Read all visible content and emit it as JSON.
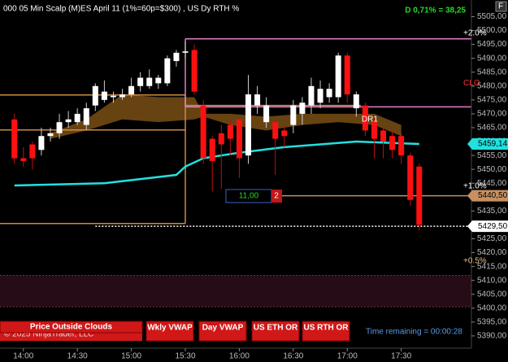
{
  "header": {
    "title": "000 05 Min Scalp (M)ES  April 11 (1%=60p=$300) , US Dy RTH %",
    "change": "D 0,71% = 38,25",
    "corner": "F"
  },
  "chart_data": {
    "type": "candlestick",
    "x": [
      0,
      1,
      2,
      3,
      4,
      5,
      6,
      7,
      8,
      9,
      10,
      11,
      12,
      13,
      14,
      15,
      16,
      17,
      18,
      19,
      20,
      21,
      22,
      23,
      24,
      25,
      26,
      27,
      28,
      29,
      30,
      31,
      32,
      33,
      34,
      35,
      36,
      37,
      38,
      39,
      40,
      41,
      42,
      43,
      44,
      45
    ],
    "open": [
      5468,
      5454,
      5459,
      5457,
      5462,
      5463,
      5467,
      5467,
      5466,
      5473,
      5475,
      5476,
      5476,
      5477,
      5480,
      5480,
      5481,
      5481,
      5489,
      5492,
      5493,
      5473,
      5461,
      5463,
      5466,
      5468,
      5455,
      5473,
      5467,
      5467,
      5464,
      5466,
      5470,
      5473,
      5474,
      5476,
      5476,
      5491,
      5472,
      5473,
      5467,
      5464,
      5462,
      5462,
      5455,
      5451
    ],
    "high": [
      5470,
      5458,
      5460,
      5465,
      5465,
      5470,
      5471,
      5472,
      5474,
      5481,
      5482,
      5478,
      5479,
      5483,
      5485,
      5486,
      5484,
      5491,
      5493,
      5496,
      5495,
      5475,
      5462,
      5466,
      5468,
      5469,
      5484,
      5480,
      5476,
      5468,
      5466,
      5475,
      5476,
      5483,
      5482,
      5481,
      5492,
      5492,
      5478,
      5474,
      5469,
      5465,
      5464,
      5463,
      5456,
      5452
    ],
    "low": [
      5452,
      5451,
      5450,
      5455,
      5460,
      5461,
      5465,
      5466,
      5464,
      5471,
      5474,
      5474,
      5475,
      5476,
      5478,
      5479,
      5479,
      5480,
      5487,
      5490,
      5477,
      5452,
      5442,
      5443,
      5455,
      5447,
      5452,
      5470,
      5465,
      5448,
      5458,
      5463,
      5466,
      5470,
      5472,
      5474,
      5474,
      5474,
      5469,
      5462,
      5454,
      5454,
      5454,
      5452,
      5437,
      5428
    ],
    "close": [
      5454,
      5453,
      5454,
      5462,
      5463,
      5467,
      5468,
      5470,
      5472,
      5480,
      5478,
      5476.5,
      5477,
      5480,
      5483,
      5483,
      5483,
      5490,
      5492,
      5492.5,
      5478,
      5454,
      5453,
      5459,
      5461,
      5454,
      5477,
      5477,
      5473,
      5461,
      5462,
      5473,
      5474,
      5480,
      5479,
      5479,
      5491,
      5477,
      5477,
      5464,
      5461,
      5460,
      5457,
      5455,
      5439,
      5430
    ],
    "up_color": "#ffffff",
    "down_color": "#ff1010",
    "xlim": [
      -1.6,
      50.8
    ],
    "xticks": [
      {
        "value": 1,
        "label": "14:00"
      },
      {
        "value": 7,
        "label": "14:30"
      },
      {
        "value": 13,
        "label": "15:00"
      },
      {
        "value": 19,
        "label": "15:30"
      },
      {
        "value": 25,
        "label": "16:00"
      },
      {
        "value": 31,
        "label": "16:30"
      },
      {
        "value": 37,
        "label": "17:00"
      },
      {
        "value": 43,
        "label": "17:30"
      }
    ],
    "ylim": [
      5385,
      5511
    ],
    "yticks": [
      {
        "value": 5390,
        "label": "5390,00"
      },
      {
        "value": 5395,
        "label": "5395,00"
      },
      {
        "value": 5400,
        "label": "5400,00"
      },
      {
        "value": 5405,
        "label": "5405,00"
      },
      {
        "value": 5410,
        "label": "5410,00"
      },
      {
        "value": 5415,
        "label": "5415,00"
      },
      {
        "value": 5420,
        "label": "5420,00"
      },
      {
        "value": 5425,
        "label": "5425,00"
      },
      {
        "value": 5430,
        "label": "5430,00"
      },
      {
        "value": 5435,
        "label": "5435,00"
      },
      {
        "value": 5440,
        "label": "5440,00"
      },
      {
        "value": 5445,
        "label": "5445,00"
      },
      {
        "value": 5450,
        "label": "5450,00"
      },
      {
        "value": 5455,
        "label": "5455,00"
      },
      {
        "value": 5460,
        "label": "5460,00"
      },
      {
        "value": 5465,
        "label": "5465,00"
      },
      {
        "value": 5470,
        "label": "5470,00"
      },
      {
        "value": 5475,
        "label": "5475,00"
      },
      {
        "value": 5480,
        "label": "5480,00"
      },
      {
        "value": 5485,
        "label": "5485,00"
      },
      {
        "value": 5490,
        "label": "5490,00"
      },
      {
        "value": 5495,
        "label": "5495,00"
      },
      {
        "value": 5500,
        "label": "5500,00"
      },
      {
        "value": 5505,
        "label": "5505,00"
      }
    ],
    "cloud": {
      "color": "#8a5a18",
      "x": [
        4,
        8,
        12,
        16,
        20,
        21,
        24,
        28,
        32,
        36,
        40,
        43
      ],
      "upper": [
        5463,
        5468,
        5477,
        5476,
        5476,
        5470,
        5470,
        5469,
        5470,
        5470,
        5470,
        5466
      ],
      "lower": [
        5461,
        5464,
        5468,
        5467,
        5468,
        5469,
        5466,
        5464,
        5466,
        5467,
        5466,
        5462
      ]
    },
    "vwap": {
      "color": "#22e0e0",
      "x": [
        0,
        10,
        18,
        19,
        21,
        25,
        30,
        38,
        45
      ],
      "values": [
        5444.2,
        5445,
        5448,
        5451,
        5454,
        5456,
        5458,
        5460,
        5459.14
      ],
      "value_label": "5459,14"
    },
    "zone": {
      "from": 5400.5,
      "to": 5411.8,
      "color": "#260c16"
    },
    "levels": [
      {
        "value": 5497,
        "x": [
          19,
          50.8
        ],
        "color": "#e080c8"
      },
      {
        "value": 5472.5,
        "x": [
          19,
          50.8
        ],
        "color": "#e080c8"
      },
      {
        "value": 5473,
        "x": [
          19,
          38.5
        ],
        "color": "#d08a40"
      },
      {
        "value": 5476.8,
        "x": [
          -1.6,
          19
        ],
        "color": "#d08a40"
      },
      {
        "value": 5464.2,
        "x": [
          -1.6,
          19
        ],
        "color": "#d08a40"
      },
      {
        "value": 5430.5,
        "x": [
          -1.6,
          19
        ],
        "color": "#d08a40"
      },
      {
        "value": 5440.5,
        "x": [
          28.5,
          50.8
        ],
        "color": "#c89060",
        "value_label": "5440,50"
      },
      {
        "value": 5429.5,
        "x": [
          9,
          50.8
        ],
        "color": "#ffffff",
        "dashed": true,
        "value_label": "5429,50"
      }
    ],
    "annotations": [
      {
        "text": "+2.0%",
        "x": 49.9,
        "y": 5499,
        "color": "#ffffff"
      },
      {
        "text": "CLO",
        "x": 49.9,
        "y": 5481,
        "color": "#ff3030"
      },
      {
        "text": "+1.0%",
        "x": 49.9,
        "y": 5444,
        "color": "#ffffff"
      },
      {
        "text": "+0.5%",
        "x": 49.9,
        "y": 5417,
        "color": "#e8c080"
      },
      {
        "text": "DR1",
        "x": 39.5,
        "y": 5468,
        "color": "#ffffff"
      }
    ]
  },
  "order": {
    "quantity": "11,00",
    "count": "2"
  },
  "buttons": [
    "Price Outside Clouds",
    "Wkly VWAP",
    "Day VWAP",
    "US ETH OR",
    "US RTH OR"
  ],
  "copyright": "© 2025 NinjaTrader, LLC",
  "timer": "Time remaining = 00:00:28"
}
